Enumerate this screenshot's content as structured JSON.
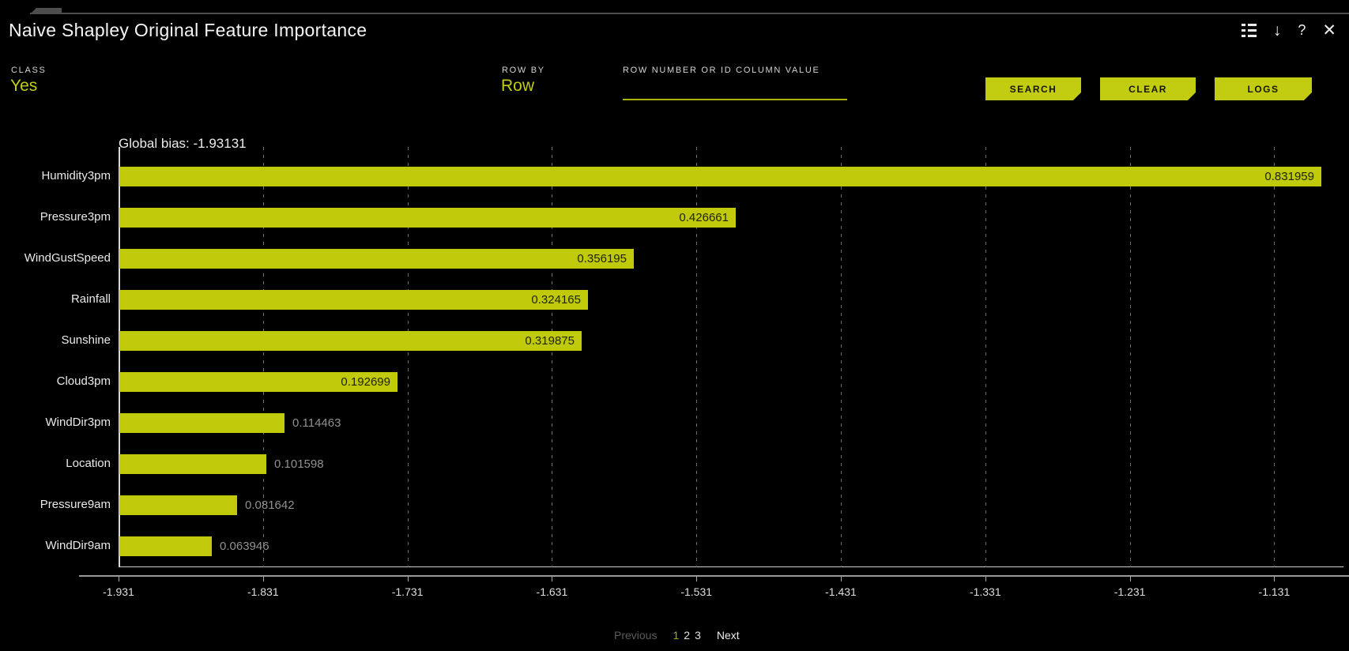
{
  "accent_color": "#c2cc10",
  "bar_color": "#c0ca0a",
  "window": {
    "title": "Naive Shapley Original Feature Importance",
    "toolbar": {
      "download_icon": "↓",
      "help_icon": "?",
      "close_icon": "✕"
    }
  },
  "controls": {
    "class": {
      "label": "CLASS",
      "value": "Yes"
    },
    "row_by": {
      "label": "ROW BY",
      "value": "Row"
    },
    "row_search": {
      "label": "ROW NUMBER OR ID COLUMN VALUE",
      "value": "",
      "placeholder": ""
    },
    "buttons": {
      "search": "SEARCH",
      "clear": "CLEAR",
      "logs": "LOGS"
    }
  },
  "chart_data": {
    "type": "bar",
    "orientation": "horizontal",
    "title": "Global bias: -1.93131",
    "global_bias": -1.93131,
    "categories": [
      "Humidity3pm",
      "Pressure3pm",
      "WindGustSpeed",
      "Rainfall",
      "Sunshine",
      "Cloud3pm",
      "WindDir3pm",
      "Location",
      "Pressure9am",
      "WindDir9am"
    ],
    "values": [
      0.831959,
      0.426661,
      0.356195,
      0.324165,
      0.319875,
      0.192699,
      0.114463,
      0.101598,
      0.081642,
      0.063946
    ],
    "value_labels": [
      "0.831959",
      "0.426661",
      "0.356195",
      "0.324165",
      "0.319875",
      "0.192699",
      "0.114463",
      "0.101598",
      "0.081642",
      "0.063946"
    ],
    "label_inside": [
      true,
      true,
      true,
      true,
      true,
      true,
      false,
      false,
      false,
      false
    ],
    "x_ticks": [
      "-1.931",
      "-1.831",
      "-1.731",
      "-1.631",
      "-1.531",
      "-1.431",
      "-1.331",
      "-1.231",
      "-1.131"
    ],
    "x_axis": {
      "min": -1.931,
      "tick_step": 0.1,
      "grid": "dashed-vertical"
    },
    "legend": "none"
  },
  "pagination": {
    "previous": "Previous",
    "pages": [
      "1",
      "2",
      "3"
    ],
    "current": "1",
    "next": "Next"
  }
}
